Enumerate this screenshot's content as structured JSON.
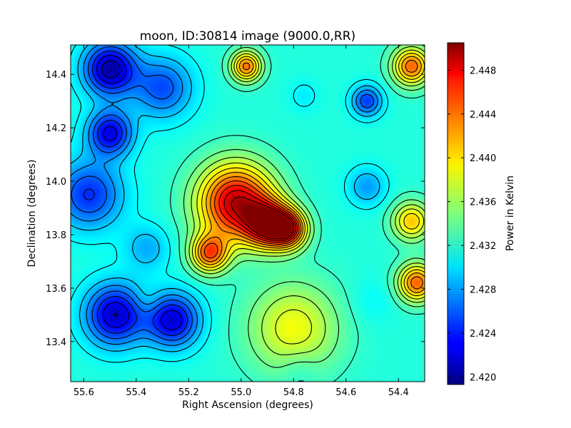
{
  "chart_data": {
    "type": "heatmap",
    "title": "moon, ID:30814 image (9000.0,RR)",
    "xlabel": "Right Ascension (degrees)",
    "ylabel": "Declination (degrees)",
    "xlim": [
      55.65,
      54.3
    ],
    "ylim": [
      13.25,
      14.51
    ],
    "x_ticks": [
      55.6,
      55.4,
      55.2,
      55.0,
      54.8,
      54.6,
      54.4
    ],
    "x_tick_labels": [
      "55.6",
      "55.4",
      "55.2",
      "55.0",
      "54.8",
      "54.6",
      "54.4"
    ],
    "y_ticks": [
      13.4,
      13.6,
      13.8,
      14.0,
      14.2,
      14.4
    ],
    "y_tick_labels": [
      "13.4",
      "13.6",
      "13.8",
      "14.0",
      "14.2",
      "14.4"
    ],
    "colorbar": {
      "label": "Power in Kelvin",
      "range": [
        2.4193,
        2.4505
      ],
      "ticks": [
        2.42,
        2.424,
        2.428,
        2.432,
        2.436,
        2.44,
        2.444,
        2.448
      ],
      "tick_labels": [
        "2.420",
        "2.424",
        "2.428",
        "2.432",
        "2.436",
        "2.440",
        "2.444",
        "2.448"
      ],
      "colormap": "jet"
    },
    "base_level": 2.432,
    "features": [
      {
        "ra": 55.5,
        "dec": 14.42,
        "value": 2.4205,
        "width": 0.07
      },
      {
        "ra": 55.5,
        "dec": 14.18,
        "value": 2.4225,
        "width": 0.06
      },
      {
        "ra": 55.58,
        "dec": 13.95,
        "value": 2.4245,
        "width": 0.09
      },
      {
        "ra": 55.48,
        "dec": 13.5,
        "value": 2.4215,
        "width": 0.08
      },
      {
        "ra": 55.26,
        "dec": 13.48,
        "value": 2.422,
        "width": 0.07
      },
      {
        "ra": 55.3,
        "dec": 14.35,
        "value": 2.4255,
        "width": 0.08
      },
      {
        "ra": 55.36,
        "dec": 13.75,
        "value": 2.4285,
        "width": 0.06
      },
      {
        "ra": 55.36,
        "dec": 13.55,
        "value": 2.4335,
        "width": 0.04
      },
      {
        "ra": 55.02,
        "dec": 13.92,
        "value": 2.4485,
        "width": 0.1
      },
      {
        "ra": 54.9,
        "dec": 13.84,
        "value": 2.4462,
        "width": 0.06
      },
      {
        "ra": 54.82,
        "dec": 13.82,
        "value": 2.4455,
        "width": 0.05
      },
      {
        "ra": 55.12,
        "dec": 13.73,
        "value": 2.4435,
        "width": 0.05
      },
      {
        "ra": 54.98,
        "dec": 14.43,
        "value": 2.443,
        "width": 0.04
      },
      {
        "ra": 54.8,
        "dec": 13.45,
        "value": 2.4385,
        "width": 0.12
      },
      {
        "ra": 54.76,
        "dec": 14.32,
        "value": 2.4305,
        "width": 0.04
      },
      {
        "ra": 54.52,
        "dec": 14.3,
        "value": 2.425,
        "width": 0.04
      },
      {
        "ra": 54.52,
        "dec": 13.98,
        "value": 2.428,
        "width": 0.05
      },
      {
        "ra": 54.5,
        "dec": 13.55,
        "value": 2.431,
        "width": 0.06
      },
      {
        "ra": 54.78,
        "dec": 13.3,
        "value": 2.4305,
        "width": 0.05
      },
      {
        "ra": 54.35,
        "dec": 14.43,
        "value": 2.4435,
        "width": 0.05
      },
      {
        "ra": 54.33,
        "dec": 13.62,
        "value": 2.4435,
        "width": 0.05
      },
      {
        "ra": 54.35,
        "dec": 13.85,
        "value": 2.4405,
        "width": 0.05
      }
    ]
  }
}
